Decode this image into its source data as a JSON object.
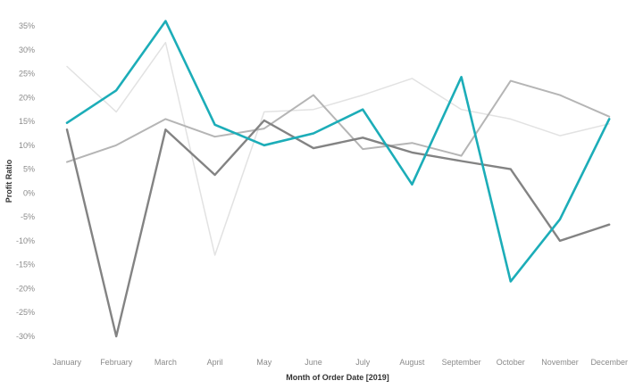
{
  "chart_data": {
    "type": "line",
    "xlabel": "Month of Order Date [2019]",
    "ylabel": "Profit Ratio",
    "categories": [
      "January",
      "February",
      "March",
      "April",
      "May",
      "June",
      "July",
      "August",
      "September",
      "October",
      "November",
      "December"
    ],
    "ylim": [
      -33,
      37
    ],
    "yticks": [
      35,
      30,
      25,
      20,
      15,
      10,
      5,
      0,
      -5,
      -10,
      -15,
      -20,
      -25,
      -30
    ],
    "ytick_labels": [
      "35%",
      "30%",
      "25%",
      "20%",
      "15%",
      "10%",
      "5%",
      "0%",
      "-5%",
      "-10%",
      "-15%",
      "-20%",
      "-25%",
      "-30%"
    ],
    "grid": false,
    "legend": "none",
    "series": [
      {
        "values": [
          26.5,
          17,
          31.5,
          -13,
          17,
          17.5,
          20.5,
          24,
          17.5,
          15.5,
          12,
          14.5
        ],
        "color": "#e2e2e2",
        "width": 1.5
      },
      {
        "values": [
          6.5,
          10,
          15.5,
          11.8,
          13.5,
          20.5,
          9.2,
          10.5,
          7.8,
          23.5,
          20.5,
          16
        ],
        "color": "#b5b5b5",
        "width": 2
      },
      {
        "values": [
          13.3,
          -30,
          13.3,
          3.8,
          15.2,
          9.4,
          11.6,
          8.5,
          6.7,
          5,
          -10,
          -6.6
        ],
        "color": "#838383",
        "width": 2.4
      },
      {
        "values": [
          14.7,
          21.5,
          36,
          14.3,
          10,
          12.5,
          17.5,
          1.8,
          24.3,
          -18.5,
          -5.5,
          15.5
        ],
        "color": "#1cadb8",
        "width": 2.6
      }
    ]
  }
}
